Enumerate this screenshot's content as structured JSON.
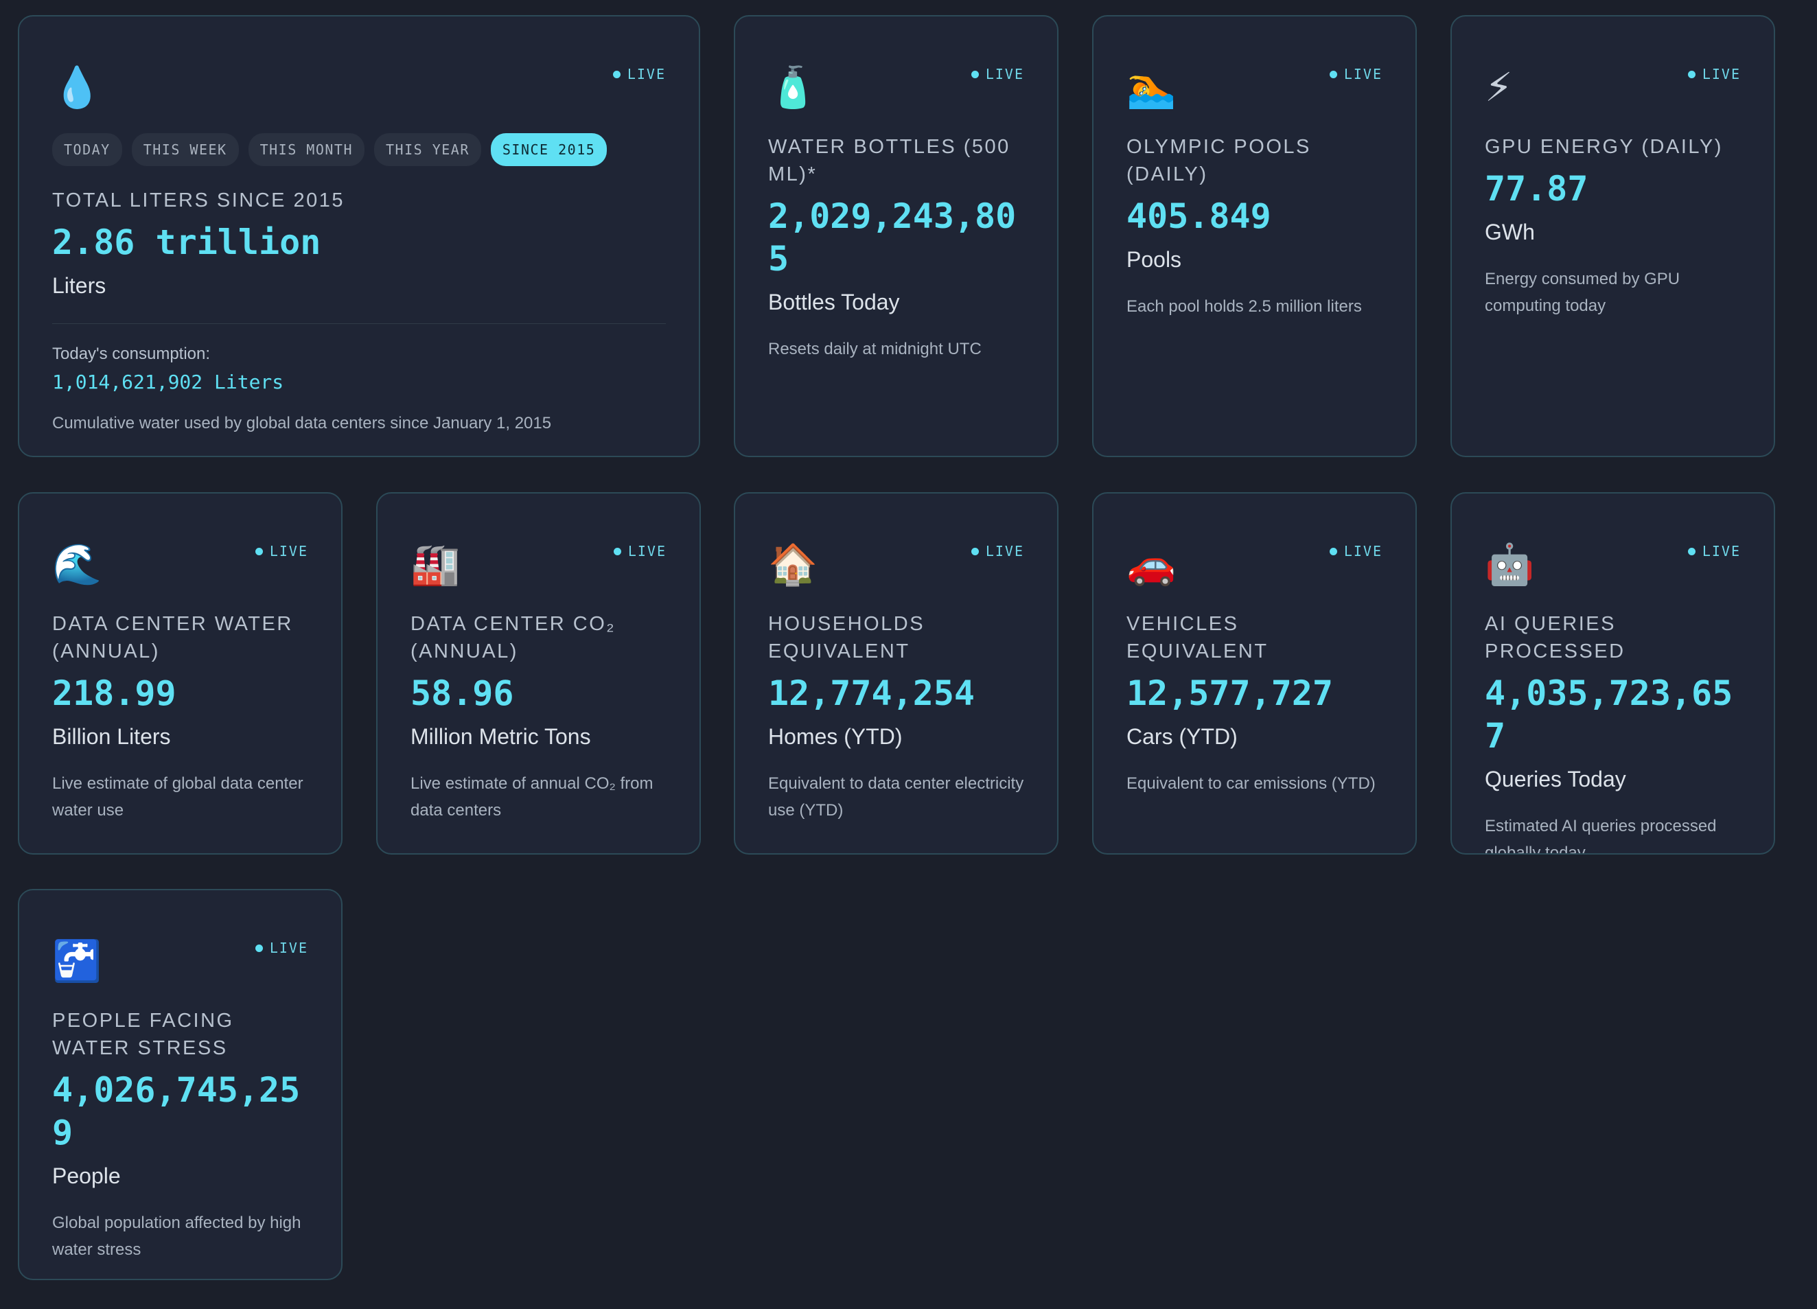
{
  "live_label": "LIVE",
  "main": {
    "icon": "💧",
    "tabs": [
      {
        "label": "TODAY"
      },
      {
        "label": "THIS WEEK"
      },
      {
        "label": "THIS MONTH"
      },
      {
        "label": "THIS YEAR"
      },
      {
        "label": "SINCE 2015"
      }
    ],
    "title": "TOTAL LITERS SINCE 2015",
    "value": "2.86 trillion",
    "unit": "Liters",
    "today_label": "Today's consumption:",
    "today_value": "1,014,621,902 Liters",
    "desc": "Cumulative water used by global data centers since January 1, 2015"
  },
  "cards": [
    {
      "icon": "🧴",
      "title": "WATER BOTTLES (500 ML)*",
      "value": "2,029,243,805",
      "unit": "Bottles Today",
      "desc": "Resets daily at midnight UTC"
    },
    {
      "icon": "🏊",
      "title": "OLYMPIC POOLS (DAILY)",
      "value": "405.849",
      "unit": "Pools",
      "desc": "Each pool holds 2.5 million liters"
    },
    {
      "icon": "⚡",
      "title": "GPU ENERGY (DAILY)",
      "value": "77.87",
      "unit": "GWh",
      "desc": "Energy consumed by GPU computing today"
    },
    {
      "icon": "🌊",
      "title": "DATA CENTER WATER (ANNUAL)",
      "value": "218.99",
      "unit": "Billion Liters",
      "desc": "Live estimate of global data center water use"
    },
    {
      "icon": "🏭",
      "title": "DATA CENTER CO₂ (ANNUAL)",
      "value": "58.96",
      "unit": "Million Metric Tons",
      "desc": "Live estimate of annual CO₂ from data centers"
    },
    {
      "icon": "🏠",
      "title": "HOUSEHOLDS EQUIVALENT",
      "value": "12,774,254",
      "unit": "Homes (YTD)",
      "desc": "Equivalent to data center electricity use (YTD)"
    },
    {
      "icon": "🚗",
      "title": "VEHICLES EQUIVALENT",
      "value": "12,577,727",
      "unit": "Cars (YTD)",
      "desc": "Equivalent to car emissions (YTD)"
    },
    {
      "icon": "🤖",
      "title": "AI QUERIES PROCESSED",
      "value": "4,035,723,657",
      "unit": "Queries Today",
      "desc": "Estimated AI queries processed globally today"
    },
    {
      "icon": "🚰",
      "title": "PEOPLE FACING WATER STRESS",
      "value": "4,026,745,259",
      "unit": "People",
      "desc": "Global population affected by high water stress"
    }
  ]
}
